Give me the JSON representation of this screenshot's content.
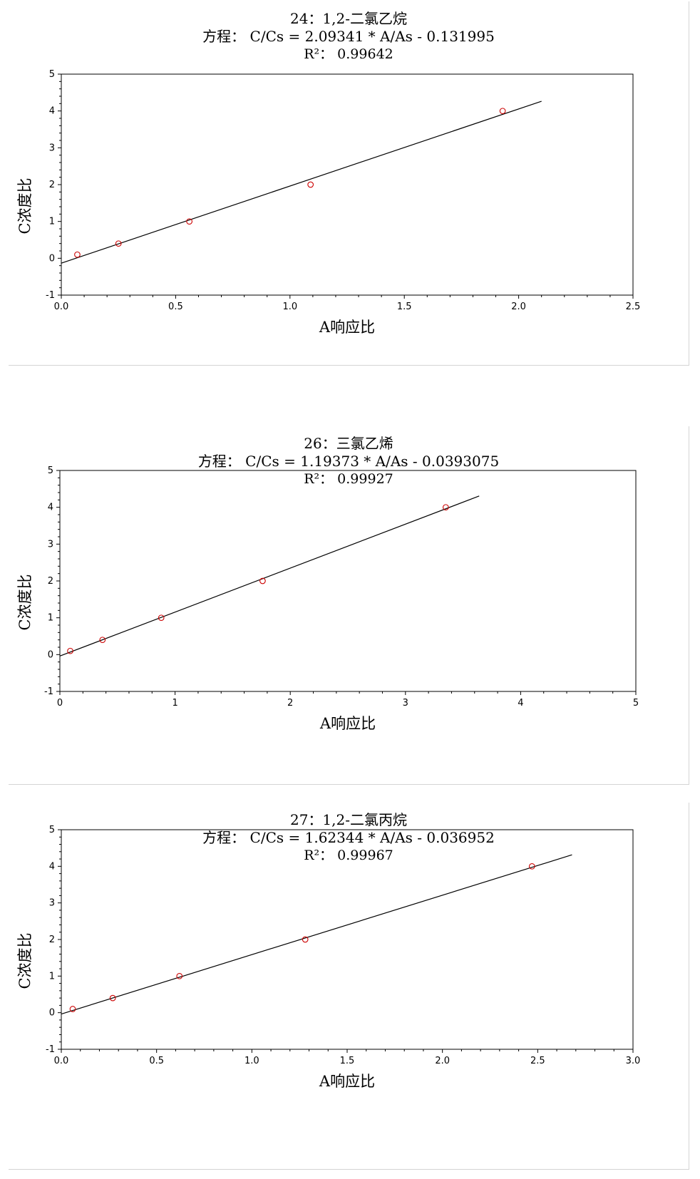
{
  "chart_data": [
    {
      "type": "scatter",
      "title": "24：1,2-二氯乙烷",
      "equation": "方程：  C/Cs =  2.09341 * A/As - 0.131995",
      "r2": "R²：  0.99642",
      "xlabel": "A响应比",
      "ylabel": "C浓度比",
      "xlim": [
        0,
        2.5
      ],
      "ylim": [
        -1,
        5
      ],
      "xticks": [
        "0.0",
        "0.5",
        "1.0",
        "1.5",
        "2.0",
        "2.5"
      ],
      "yticks": [
        "-1",
        "0",
        "1",
        "2",
        "3",
        "4",
        "5"
      ],
      "points": [
        [
          0.07,
          0.1
        ],
        [
          0.25,
          0.4
        ],
        [
          0.56,
          1.0
        ],
        [
          1.09,
          2.0
        ],
        [
          1.93,
          4.0
        ]
      ],
      "fit": {
        "slope": 2.09341,
        "intercept": -0.131995,
        "x_range": [
          0,
          2.1
        ]
      },
      "point_color": "#cc0000",
      "line_color": "#000000",
      "grid": false
    },
    {
      "type": "scatter",
      "title": "26：三氯乙烯",
      "equation": "方程：  C/Cs =  1.19373 * A/As - 0.0393075",
      "r2": "R²：  0.99927",
      "xlabel": "A响应比",
      "ylabel": "C浓度比",
      "xlim": [
        0,
        5
      ],
      "ylim": [
        -1,
        5
      ],
      "xticks": [
        "0",
        "1",
        "2",
        "3",
        "4",
        "5"
      ],
      "yticks": [
        "-1",
        "0",
        "1",
        "2",
        "3",
        "4",
        "5"
      ],
      "points": [
        [
          0.09,
          0.1
        ],
        [
          0.37,
          0.4
        ],
        [
          0.88,
          1.0
        ],
        [
          1.76,
          2.0
        ],
        [
          3.35,
          4.0
        ]
      ],
      "fit": {
        "slope": 1.19373,
        "intercept": -0.0393075,
        "x_range": [
          0,
          3.64
        ]
      },
      "point_color": "#cc0000",
      "line_color": "#000000",
      "grid": false
    },
    {
      "type": "scatter",
      "title": "27：1,2-二氯丙烷",
      "equation": "方程：  C/Cs =  1.62344 * A/As - 0.036952",
      "r2": "R²：  0.99967",
      "xlabel": "A响应比",
      "ylabel": "C浓度比",
      "xlim": [
        0,
        3.0
      ],
      "ylim": [
        -1,
        5
      ],
      "xticks": [
        "0.0",
        "0.5",
        "1.0",
        "1.5",
        "2.0",
        "2.5",
        "3.0"
      ],
      "yticks": [
        "-1",
        "0",
        "1",
        "2",
        "3",
        "4",
        "5"
      ],
      "points": [
        [
          0.06,
          0.1
        ],
        [
          0.27,
          0.4
        ],
        [
          0.62,
          1.0
        ],
        [
          1.28,
          2.0
        ],
        [
          2.47,
          4.0
        ]
      ],
      "fit": {
        "slope": 1.62344,
        "intercept": -0.036952,
        "x_range": [
          0,
          2.68
        ]
      },
      "point_color": "#cc0000",
      "line_color": "#000000",
      "grid": false
    }
  ]
}
